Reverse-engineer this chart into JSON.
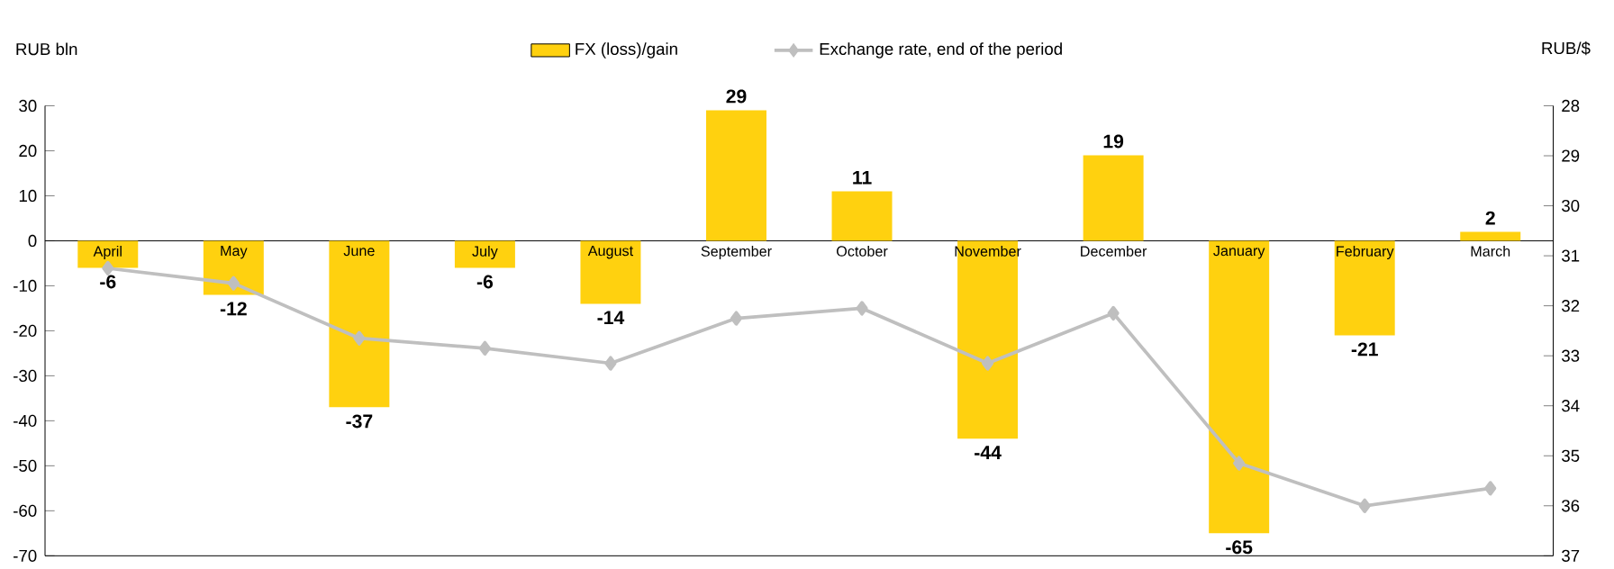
{
  "chart_data": {
    "type": "bar",
    "ylabel": "RUB bln",
    "y2label": "RUB/$",
    "categories": [
      "April",
      "May",
      "June",
      "July",
      "August",
      "September",
      "October",
      "November",
      "December",
      "January",
      "February",
      "March"
    ],
    "series": [
      {
        "name": "FX (loss)/gain",
        "color": "#ffd10f",
        "values": [
          -6,
          -12,
          -37,
          -6,
          -14,
          29,
          11,
          -44,
          19,
          -65,
          -21,
          2
        ],
        "value_labels": [
          "-6",
          "-12",
          "-37",
          "-6",
          "-14",
          "29",
          "11",
          "-44",
          "19",
          "-65",
          "-21",
          "2"
        ]
      },
      {
        "name": "Exchange rate, end of the period",
        "type": "line",
        "axis": "y2",
        "color": "#bfbfbf",
        "marker": "diamond",
        "values": [
          31.25,
          31.55,
          32.65,
          32.85,
          33.15,
          32.25,
          32.05,
          33.15,
          32.15,
          35.15,
          36.0,
          35.65
        ]
      }
    ],
    "ylim": [
      -70,
      30
    ],
    "yticks": [
      -70,
      -60,
      -50,
      -40,
      -30,
      -20,
      -10,
      0,
      10,
      20,
      30
    ],
    "y2lim": [
      37,
      28
    ],
    "y2ticks": [
      37,
      36,
      35,
      34,
      33,
      32,
      31,
      30,
      29,
      28
    ],
    "legend": "top"
  }
}
